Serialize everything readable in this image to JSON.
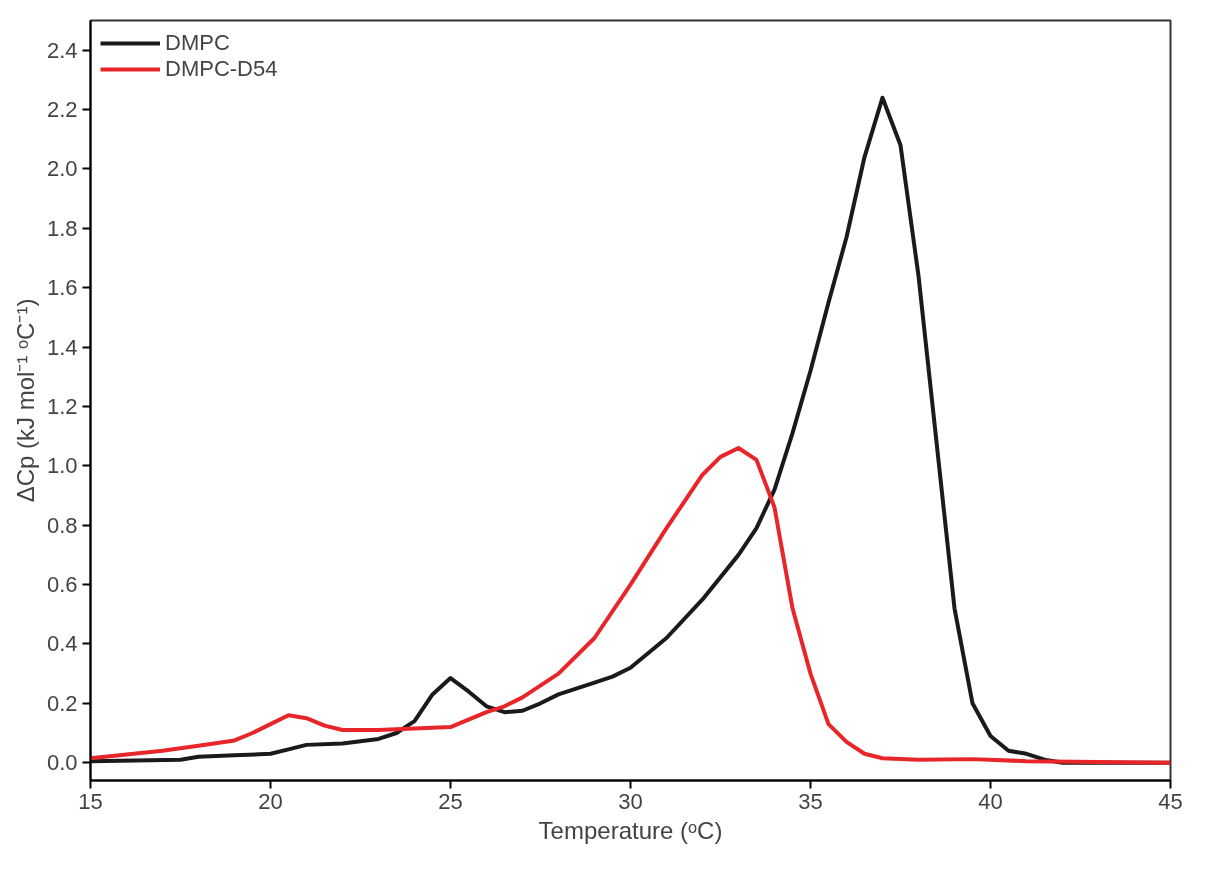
{
  "chart_data": {
    "type": "line",
    "xlabel": "Temperature (ᵒC)",
    "ylabel": "ΔCp (kJ mol⁻¹ ᵒC⁻¹)",
    "xlim": [
      15,
      45
    ],
    "xticks": [
      15,
      20,
      25,
      30,
      35,
      40,
      45
    ],
    "ylim": [
      -0.06,
      2.5
    ],
    "yticks": [
      {
        "value": 0,
        "label": "0.0"
      },
      0.2,
      0.4,
      0.6,
      0.8,
      {
        "value": 1,
        "label": "1.0"
      },
      1.2,
      1.4,
      1.6,
      1.8,
      {
        "value": 2,
        "label": "2.0"
      },
      2.2,
      2.4
    ],
    "grid": false,
    "legend": "top left",
    "line_style": "solid",
    "marker": "none",
    "series": [
      {
        "name": "DMPC",
        "color": "#1a1a1a",
        "x": [
          15,
          17.5,
          18,
          19,
          20,
          20.5,
          21,
          22,
          23,
          23.5,
          24,
          24.5,
          25,
          25.5,
          26,
          26.5,
          27,
          27.5,
          28,
          29,
          29.5,
          30,
          31,
          32,
          33,
          33.5,
          34,
          34.5,
          35,
          35.5,
          36,
          36.5,
          37,
          37.5,
          38,
          38.5,
          39,
          39.5,
          40,
          40.5,
          41,
          41.5,
          42,
          45
        ],
        "values": [
          0.005,
          0.01,
          0.02,
          0.025,
          0.03,
          0.045,
          0.06,
          0.065,
          0.08,
          0.1,
          0.14,
          0.23,
          0.285,
          0.24,
          0.19,
          0.17,
          0.175,
          0.2,
          0.23,
          0.27,
          0.29,
          0.32,
          0.42,
          0.55,
          0.7,
          0.79,
          0.92,
          1.11,
          1.32,
          1.55,
          1.77,
          2.04,
          2.24,
          2.08,
          1.64,
          1.08,
          0.52,
          0.2,
          0.09,
          0.04,
          0.03,
          0.01,
          0,
          0
        ]
      },
      {
        "name": "DMPC-D54",
        "color": "#e8262a",
        "x": [
          15,
          17,
          18,
          19,
          19.5,
          20,
          20.5,
          21,
          21.5,
          22,
          23,
          24,
          25,
          26,
          26.5,
          27,
          28,
          29,
          30,
          31,
          32,
          32.5,
          33,
          33.5,
          34,
          34.5,
          35,
          35.5,
          36,
          36.5,
          37,
          38,
          39.5,
          41,
          45
        ],
        "values": [
          0.015,
          0.04,
          0.057,
          0.075,
          0.1,
          0.13,
          0.16,
          0.15,
          0.125,
          0.11,
          0.11,
          0.115,
          0.12,
          0.17,
          0.19,
          0.22,
          0.3,
          0.42,
          0.6,
          0.79,
          0.97,
          1.03,
          1.06,
          1.02,
          0.86,
          0.52,
          0.3,
          0.13,
          0.07,
          0.03,
          0.015,
          0.01,
          0.012,
          0.005,
          0
        ]
      }
    ]
  }
}
